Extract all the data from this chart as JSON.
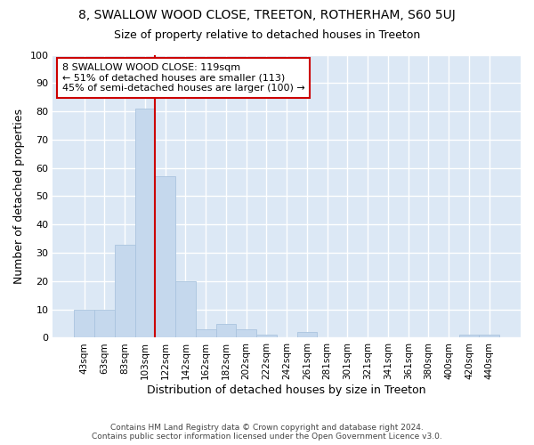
{
  "title": "8, SWALLOW WOOD CLOSE, TREETON, ROTHERHAM, S60 5UJ",
  "subtitle": "Size of property relative to detached houses in Treeton",
  "xlabel": "Distribution of detached houses by size in Treeton",
  "ylabel": "Number of detached properties",
  "categories": [
    "43sqm",
    "63sqm",
    "83sqm",
    "103sqm",
    "122sqm",
    "142sqm",
    "162sqm",
    "182sqm",
    "202sqm",
    "222sqm",
    "242sqm",
    "261sqm",
    "281sqm",
    "301sqm",
    "321sqm",
    "341sqm",
    "361sqm",
    "380sqm",
    "400sqm",
    "420sqm",
    "440sqm"
  ],
  "values": [
    10,
    10,
    33,
    81,
    57,
    20,
    3,
    5,
    3,
    1,
    0,
    2,
    0,
    0,
    0,
    0,
    0,
    0,
    0,
    1,
    1
  ],
  "bar_color": "#c5d8ed",
  "bar_edge_color": "#aac4df",
  "vline_color": "#cc0000",
  "vline_x_index": 3.5,
  "annotation_text": "8 SWALLOW WOOD CLOSE: 119sqm\n← 51% of detached houses are smaller (113)\n45% of semi-detached houses are larger (100) →",
  "annotation_box_color": "#ffffff",
  "annotation_box_edge_color": "#cc0000",
  "fig_background_color": "#ffffff",
  "plot_background_color": "#dce8f5",
  "grid_color": "#ffffff",
  "ylim": [
    0,
    100
  ],
  "title_fontsize": 10,
  "subtitle_fontsize": 9,
  "ylabel_fontsize": 9,
  "xlabel_fontsize": 9,
  "footnote": "Contains HM Land Registry data © Crown copyright and database right 2024.\nContains public sector information licensed under the Open Government Licence v3.0."
}
